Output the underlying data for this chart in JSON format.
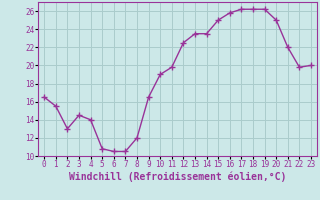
{
  "x": [
    0,
    1,
    2,
    3,
    4,
    5,
    6,
    7,
    8,
    9,
    10,
    11,
    12,
    13,
    14,
    15,
    16,
    17,
    18,
    19,
    20,
    21,
    22,
    23
  ],
  "y": [
    16.5,
    15.5,
    13.0,
    14.5,
    14.0,
    10.8,
    10.5,
    10.5,
    12.0,
    16.5,
    19.0,
    19.8,
    22.5,
    23.5,
    23.5,
    25.0,
    25.8,
    26.2,
    26.2,
    26.2,
    25.0,
    22.0,
    19.8,
    20.0
  ],
  "line_color": "#993399",
  "marker": "+",
  "marker_size": 4,
  "bg_color": "#cce8e8",
  "grid_color": "#aacccc",
  "xlabel": "Windchill (Refroidissement éolien,°C)",
  "ylabel": "",
  "ylim": [
    10,
    27
  ],
  "xlim": [
    -0.5,
    23.5
  ],
  "yticks": [
    10,
    12,
    14,
    16,
    18,
    20,
    22,
    24,
    26
  ],
  "xticks": [
    0,
    1,
    2,
    3,
    4,
    5,
    6,
    7,
    8,
    9,
    10,
    11,
    12,
    13,
    14,
    15,
    16,
    17,
    18,
    19,
    20,
    21,
    22,
    23
  ],
  "font_color": "#993399",
  "tick_fontsize": 5.5,
  "label_fontsize": 7.0
}
